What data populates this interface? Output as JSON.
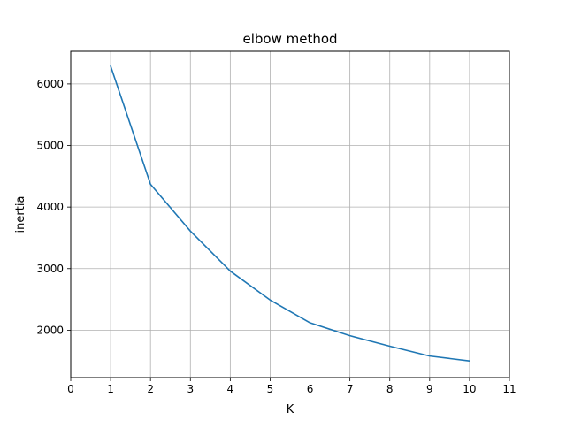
{
  "chart_data": {
    "type": "line",
    "title": "elbow method",
    "xlabel": "K",
    "ylabel": "inertia",
    "xlim": [
      0,
      11
    ],
    "ylim": [
      1230,
      6530
    ],
    "xticks": [
      0,
      1,
      2,
      3,
      4,
      5,
      6,
      7,
      8,
      9,
      10,
      11
    ],
    "yticks": [
      2000,
      3000,
      4000,
      5000,
      6000
    ],
    "grid": true,
    "series": [
      {
        "color": "#1f77b4",
        "x": [
          1,
          2,
          3,
          4,
          5,
          6,
          7,
          8,
          9,
          10
        ],
        "y": [
          6290,
          4370,
          3610,
          2960,
          2490,
          2120,
          1910,
          1740,
          1580,
          1500
        ]
      }
    ]
  }
}
